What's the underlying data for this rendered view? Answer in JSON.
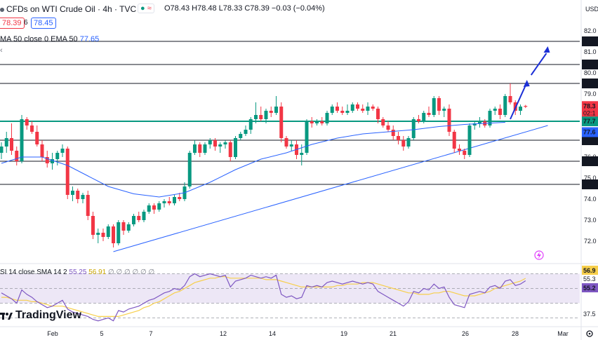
{
  "header": {
    "symbol_title": "CFDs on WTI Crude Oil · 4h · TVC",
    "ohlc": "O78.43 H78.48 L78.33 C78.39 −0.03 (−0.04%)",
    "sell_price": "78.39",
    "spread": "6",
    "buy_price": "78.45",
    "ma_legend_text": "MA 50 close 0 EMA 50",
    "ma_value": "77.65"
  },
  "rsi_legend": {
    "text": "SI 14 close SMA 14 2",
    "rsi_value": "55.25",
    "sma_value": "56.91",
    "zeros": "∅ ∅ ∅ ∅ ∅ ∅"
  },
  "logo": {
    "text": "TradingView",
    "icon": "tradingview-logo-icon"
  },
  "price_axis": {
    "unit": "USD",
    "ticks": [
      "82.0",
      "81.0",
      "80.0",
      "79.0",
      "78.0",
      "77.0",
      "76.0",
      "75.0",
      "74.0",
      "73.0",
      "72.0"
    ],
    "level_labels": [
      {
        "text": "81.5",
        "value": 81.5,
        "dark": true
      },
      {
        "text": "80.4",
        "value": 80.4,
        "dark": true
      },
      {
        "text": "79.5",
        "value": 79.5,
        "dark": true
      },
      {
        "text": "77.7",
        "value": 77.7,
        "dark": false,
        "color": "#089981"
      },
      {
        "text": "76.8",
        "value": 76.8,
        "dark": true
      },
      {
        "text": "75.8",
        "value": 75.8,
        "dark": true
      },
      {
        "text": "74.7",
        "value": 74.7,
        "dark": true
      }
    ],
    "last_price_label": "78.3",
    "countdown": "02:1",
    "ma_label": "77.6"
  },
  "rsi_axis": {
    "ticks": [
      "56.9",
      "55.3",
      "55.2",
      "37.5"
    ]
  },
  "time_axis": {
    "labels": [
      "Feb",
      "5",
      "7",
      "12",
      "14",
      "19",
      "21",
      "26",
      "28",
      "Mar"
    ]
  },
  "colors": {
    "up": "#089981",
    "down": "#f23645",
    "ma": "#2962ff",
    "rsi": "#7e57c2",
    "rsi_sma": "#f7cf4b",
    "rsi_band": "#ede7f6",
    "support": "#089981",
    "arrow": "#1b2fd6"
  },
  "chart_data": {
    "type": "candlestick",
    "title": "CFDs on WTI Crude Oil · 4h · TVC",
    "ylabel": "USD",
    "ylim": [
      71.4,
      82.2
    ],
    "horizontal_levels": [
      81.5,
      80.4,
      79.5,
      77.7,
      76.8,
      75.8,
      74.7
    ],
    "candles": [
      {
        "o": 76.2,
        "h": 76.7,
        "l": 75.9,
        "c": 76.5
      },
      {
        "o": 76.5,
        "h": 77.2,
        "l": 76.2,
        "c": 76.9
      },
      {
        "o": 76.9,
        "h": 77.6,
        "l": 76.1,
        "c": 76.3
      },
      {
        "o": 76.3,
        "h": 76.5,
        "l": 75.6,
        "c": 75.8
      },
      {
        "o": 75.8,
        "h": 78.0,
        "l": 75.7,
        "c": 77.8
      },
      {
        "o": 77.8,
        "h": 77.9,
        "l": 77.3,
        "c": 77.5
      },
      {
        "o": 77.5,
        "h": 77.7,
        "l": 77.1,
        "c": 77.2
      },
      {
        "o": 77.2,
        "h": 77.5,
        "l": 76.5,
        "c": 76.6
      },
      {
        "o": 76.6,
        "h": 76.8,
        "l": 75.8,
        "c": 76.0
      },
      {
        "o": 76.0,
        "h": 76.3,
        "l": 75.5,
        "c": 75.7
      },
      {
        "o": 75.7,
        "h": 76.2,
        "l": 75.4,
        "c": 75.9
      },
      {
        "o": 75.9,
        "h": 76.3,
        "l": 75.6,
        "c": 76.2
      },
      {
        "o": 76.2,
        "h": 76.6,
        "l": 76.0,
        "c": 76.4
      },
      {
        "o": 76.4,
        "h": 76.5,
        "l": 74.0,
        "c": 74.2
      },
      {
        "o": 74.2,
        "h": 74.6,
        "l": 73.9,
        "c": 74.4
      },
      {
        "o": 74.4,
        "h": 74.5,
        "l": 73.8,
        "c": 74.0
      },
      {
        "o": 74.0,
        "h": 74.3,
        "l": 73.8,
        "c": 74.2
      },
      {
        "o": 74.2,
        "h": 74.4,
        "l": 73.0,
        "c": 73.2
      },
      {
        "o": 73.2,
        "h": 73.4,
        "l": 72.1,
        "c": 72.3
      },
      {
        "o": 72.3,
        "h": 72.6,
        "l": 71.9,
        "c": 72.4
      },
      {
        "o": 72.4,
        "h": 72.6,
        "l": 72.0,
        "c": 72.2
      },
      {
        "o": 72.2,
        "h": 72.8,
        "l": 72.1,
        "c": 72.7
      },
      {
        "o": 72.7,
        "h": 72.8,
        "l": 71.7,
        "c": 71.9
      },
      {
        "o": 71.9,
        "h": 73.0,
        "l": 71.8,
        "c": 72.9
      },
      {
        "o": 72.9,
        "h": 73.0,
        "l": 72.3,
        "c": 72.5
      },
      {
        "o": 72.5,
        "h": 72.9,
        "l": 72.4,
        "c": 72.8
      },
      {
        "o": 72.8,
        "h": 73.3,
        "l": 72.7,
        "c": 73.2
      },
      {
        "o": 73.2,
        "h": 73.4,
        "l": 72.9,
        "c": 73.0
      },
      {
        "o": 73.0,
        "h": 73.5,
        "l": 72.9,
        "c": 73.4
      },
      {
        "o": 73.4,
        "h": 73.8,
        "l": 73.3,
        "c": 73.7
      },
      {
        "o": 73.7,
        "h": 73.8,
        "l": 73.3,
        "c": 73.5
      },
      {
        "o": 73.5,
        "h": 73.9,
        "l": 73.4,
        "c": 73.8
      },
      {
        "o": 73.8,
        "h": 74.0,
        "l": 73.6,
        "c": 73.9
      },
      {
        "o": 73.9,
        "h": 74.1,
        "l": 73.7,
        "c": 73.8
      },
      {
        "o": 73.8,
        "h": 74.2,
        "l": 73.7,
        "c": 74.1
      },
      {
        "o": 74.1,
        "h": 74.3,
        "l": 73.9,
        "c": 74.0
      },
      {
        "o": 74.0,
        "h": 74.8,
        "l": 73.9,
        "c": 74.6
      },
      {
        "o": 74.6,
        "h": 76.3,
        "l": 74.5,
        "c": 76.2
      },
      {
        "o": 76.2,
        "h": 76.8,
        "l": 76.1,
        "c": 76.6
      },
      {
        "o": 76.6,
        "h": 76.7,
        "l": 76.0,
        "c": 76.2
      },
      {
        "o": 76.2,
        "h": 76.7,
        "l": 76.1,
        "c": 76.6
      },
      {
        "o": 76.6,
        "h": 76.9,
        "l": 76.4,
        "c": 76.8
      },
      {
        "o": 76.8,
        "h": 76.9,
        "l": 76.3,
        "c": 76.5
      },
      {
        "o": 76.5,
        "h": 76.7,
        "l": 76.2,
        "c": 76.6
      },
      {
        "o": 76.6,
        "h": 76.8,
        "l": 76.4,
        "c": 76.7
      },
      {
        "o": 76.7,
        "h": 76.8,
        "l": 75.8,
        "c": 76.0
      },
      {
        "o": 76.0,
        "h": 77.0,
        "l": 75.9,
        "c": 76.9
      },
      {
        "o": 76.9,
        "h": 77.2,
        "l": 76.8,
        "c": 77.1
      },
      {
        "o": 77.1,
        "h": 77.5,
        "l": 77.0,
        "c": 77.3
      },
      {
        "o": 77.3,
        "h": 77.9,
        "l": 77.1,
        "c": 77.8
      },
      {
        "o": 77.8,
        "h": 78.6,
        "l": 77.6,
        "c": 78.0
      },
      {
        "o": 78.0,
        "h": 78.4,
        "l": 77.7,
        "c": 77.8
      },
      {
        "o": 77.8,
        "h": 78.3,
        "l": 77.6,
        "c": 78.2
      },
      {
        "o": 78.2,
        "h": 78.4,
        "l": 77.9,
        "c": 78.1
      },
      {
        "o": 78.1,
        "h": 78.9,
        "l": 78.0,
        "c": 78.4
      },
      {
        "o": 78.4,
        "h": 78.6,
        "l": 76.7,
        "c": 76.9
      },
      {
        "o": 76.9,
        "h": 77.0,
        "l": 76.4,
        "c": 76.5
      },
      {
        "o": 76.5,
        "h": 76.8,
        "l": 76.3,
        "c": 76.6
      },
      {
        "o": 76.6,
        "h": 76.8,
        "l": 75.9,
        "c": 76.1
      },
      {
        "o": 76.1,
        "h": 76.6,
        "l": 75.6,
        "c": 76.2
      },
      {
        "o": 76.2,
        "h": 77.8,
        "l": 76.1,
        "c": 77.7
      },
      {
        "o": 77.7,
        "h": 77.9,
        "l": 77.4,
        "c": 77.6
      },
      {
        "o": 77.6,
        "h": 77.8,
        "l": 77.5,
        "c": 77.7
      },
      {
        "o": 77.7,
        "h": 77.9,
        "l": 77.5,
        "c": 77.6
      },
      {
        "o": 77.6,
        "h": 78.2,
        "l": 77.5,
        "c": 78.1
      },
      {
        "o": 78.1,
        "h": 78.5,
        "l": 78.0,
        "c": 78.4
      },
      {
        "o": 78.4,
        "h": 78.6,
        "l": 78.1,
        "c": 78.2
      },
      {
        "o": 78.2,
        "h": 78.4,
        "l": 78.0,
        "c": 78.1
      },
      {
        "o": 78.1,
        "h": 78.5,
        "l": 78.0,
        "c": 78.2
      },
      {
        "o": 78.2,
        "h": 78.6,
        "l": 78.1,
        "c": 78.5
      },
      {
        "o": 78.5,
        "h": 78.6,
        "l": 78.2,
        "c": 78.3
      },
      {
        "o": 78.3,
        "h": 78.5,
        "l": 78.1,
        "c": 78.2
      },
      {
        "o": 78.2,
        "h": 78.6,
        "l": 78.0,
        "c": 78.4
      },
      {
        "o": 78.4,
        "h": 78.5,
        "l": 78.2,
        "c": 78.3
      },
      {
        "o": 78.3,
        "h": 78.4,
        "l": 77.6,
        "c": 77.8
      },
      {
        "o": 77.8,
        "h": 77.9,
        "l": 77.4,
        "c": 77.5
      },
      {
        "o": 77.5,
        "h": 77.7,
        "l": 77.2,
        "c": 77.3
      },
      {
        "o": 77.3,
        "h": 77.5,
        "l": 76.8,
        "c": 77.0
      },
      {
        "o": 77.0,
        "h": 77.2,
        "l": 76.6,
        "c": 76.8
      },
      {
        "o": 76.8,
        "h": 77.0,
        "l": 76.3,
        "c": 76.5
      },
      {
        "o": 76.5,
        "h": 77.0,
        "l": 76.4,
        "c": 76.9
      },
      {
        "o": 76.9,
        "h": 77.9,
        "l": 76.8,
        "c": 77.8
      },
      {
        "o": 77.8,
        "h": 78.0,
        "l": 77.6,
        "c": 77.7
      },
      {
        "o": 77.7,
        "h": 78.2,
        "l": 77.6,
        "c": 78.1
      },
      {
        "o": 78.1,
        "h": 78.4,
        "l": 77.9,
        "c": 78.0
      },
      {
        "o": 78.0,
        "h": 78.9,
        "l": 77.9,
        "c": 78.8
      },
      {
        "o": 78.8,
        "h": 78.9,
        "l": 78.0,
        "c": 78.2
      },
      {
        "o": 78.2,
        "h": 78.4,
        "l": 77.9,
        "c": 78.3
      },
      {
        "o": 78.3,
        "h": 78.5,
        "l": 77.0,
        "c": 77.2
      },
      {
        "o": 77.2,
        "h": 77.3,
        "l": 76.2,
        "c": 76.4
      },
      {
        "o": 76.4,
        "h": 76.6,
        "l": 76.1,
        "c": 76.3
      },
      {
        "o": 76.3,
        "h": 76.4,
        "l": 75.9,
        "c": 76.1
      },
      {
        "o": 76.1,
        "h": 77.6,
        "l": 76.0,
        "c": 77.5
      },
      {
        "o": 77.5,
        "h": 77.7,
        "l": 77.3,
        "c": 77.6
      },
      {
        "o": 77.6,
        "h": 77.9,
        "l": 77.4,
        "c": 77.7
      },
      {
        "o": 77.7,
        "h": 77.8,
        "l": 77.4,
        "c": 77.5
      },
      {
        "o": 77.5,
        "h": 78.3,
        "l": 77.4,
        "c": 78.2
      },
      {
        "o": 78.2,
        "h": 78.4,
        "l": 78.0,
        "c": 78.3
      },
      {
        "o": 78.3,
        "h": 78.5,
        "l": 77.8,
        "c": 78.0
      },
      {
        "o": 78.0,
        "h": 79.0,
        "l": 77.9,
        "c": 78.9
      },
      {
        "o": 78.9,
        "h": 79.5,
        "l": 78.5,
        "c": 78.6
      },
      {
        "o": 78.6,
        "h": 78.7,
        "l": 78.0,
        "c": 78.2
      },
      {
        "o": 78.2,
        "h": 78.5,
        "l": 78.0,
        "c": 78.4
      },
      {
        "o": 78.43,
        "h": 78.48,
        "l": 78.33,
        "c": 78.39
      }
    ],
    "ma": [
      {
        "i": 0,
        "v": 75.7
      },
      {
        "i": 4,
        "v": 76.0
      },
      {
        "i": 8,
        "v": 76.0
      },
      {
        "i": 13,
        "v": 75.6
      },
      {
        "i": 17,
        "v": 75.1
      },
      {
        "i": 21,
        "v": 74.6
      },
      {
        "i": 26,
        "v": 74.25
      },
      {
        "i": 31,
        "v": 74.1
      },
      {
        "i": 36,
        "v": 74.3
      },
      {
        "i": 41,
        "v": 74.8
      },
      {
        "i": 46,
        "v": 75.4
      },
      {
        "i": 51,
        "v": 75.9
      },
      {
        "i": 56,
        "v": 76.2
      },
      {
        "i": 61,
        "v": 76.6
      },
      {
        "i": 66,
        "v": 76.9
      },
      {
        "i": 71,
        "v": 77.1
      },
      {
        "i": 76,
        "v": 77.2
      },
      {
        "i": 81,
        "v": 77.3
      },
      {
        "i": 86,
        "v": 77.45
      },
      {
        "i": 91,
        "v": 77.55
      },
      {
        "i": 99,
        "v": 77.65
      }
    ],
    "trendline": {
      "from": {
        "i": 22,
        "v": 71.5
      },
      "to": {
        "i": 106,
        "v": 77.5
      }
    },
    "forecast_arrow": {
      "from": {
        "i": 100,
        "v": 77.8
      },
      "mid": {
        "i": 103,
        "v": 79.4
      },
      "to": {
        "i": 106,
        "v": 81.0
      }
    },
    "rsi": {
      "ylim": [
        25,
        65
      ],
      "levels": [
        60,
        50,
        40,
        30
      ],
      "rsi_values": [
        47,
        45,
        43,
        40,
        49,
        46,
        44,
        41,
        39,
        37,
        38,
        40,
        42,
        36,
        34,
        33,
        32,
        31,
        29,
        28,
        29,
        30,
        28,
        35,
        34,
        36,
        37,
        38,
        40,
        42,
        43,
        45,
        47,
        48,
        50,
        49,
        52,
        58,
        60,
        58,
        59,
        60,
        59,
        58,
        59,
        51,
        55,
        56,
        57,
        59,
        58,
        57,
        58,
        57,
        59,
        46,
        44,
        45,
        43,
        44,
        52,
        51,
        52,
        51,
        54,
        55,
        54,
        53,
        54,
        55,
        54,
        53,
        54,
        53,
        48,
        46,
        44,
        42,
        40,
        38,
        41,
        48,
        47,
        50,
        49,
        53,
        50,
        51,
        44,
        39,
        38,
        37,
        46,
        47,
        48,
        47,
        51,
        52,
        50,
        55,
        56,
        52,
        53,
        55.25
      ],
      "sma_values": [
        44,
        44,
        43,
        42,
        42,
        42,
        41,
        41,
        40,
        39,
        38,
        38,
        38,
        37,
        36,
        35,
        34,
        33,
        32,
        31,
        31,
        31,
        31,
        31,
        32,
        33,
        34,
        35,
        37,
        38,
        40,
        41,
        43,
        45,
        47,
        48,
        50,
        52,
        54,
        55,
        56,
        57,
        57,
        58,
        58,
        57,
        57,
        57,
        57,
        57,
        57,
        57,
        56,
        56,
        56,
        55,
        54,
        53,
        52,
        51,
        51,
        51,
        51,
        51,
        51,
        51,
        52,
        52,
        53,
        53,
        53,
        54,
        54,
        54,
        53,
        52,
        51,
        50,
        49,
        48,
        47,
        47,
        46,
        46,
        46,
        47,
        47,
        48,
        48,
        47,
        46,
        45,
        45,
        45,
        46,
        47,
        48,
        50,
        51,
        52,
        53,
        54,
        55,
        56.91
      ]
    }
  }
}
